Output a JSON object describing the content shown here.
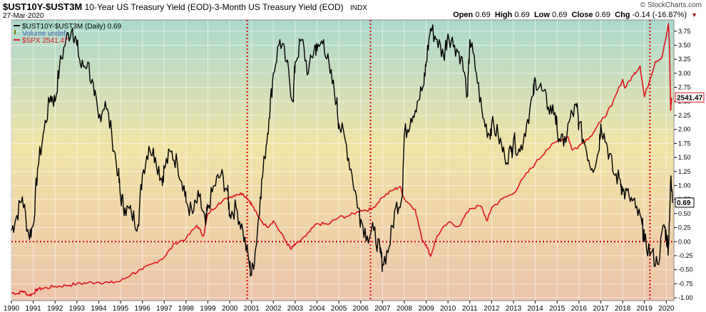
{
  "header": {
    "symbol": "$UST10Y-$UST3M",
    "description": "10-Year US Treasury Yield (EOD)-3-Month US Treasury Yield (EOD)",
    "exchange": "INDX",
    "date": "27-Mar-2020",
    "logo": "© StockCharts.com",
    "quote": {
      "open_label": "Open",
      "open": "0.69",
      "high_label": "High",
      "high": "0.69",
      "low_label": "Low",
      "low": "0.69",
      "close_label": "Close",
      "close": "0.69",
      "chg_label": "Chg",
      "chg": "-0.14 (-16.87%)"
    }
  },
  "legend": {
    "series1": "$UST10Y-$UST3M (Daily) 0.69",
    "volume": "Volume undef",
    "series2": "$SPX 2541.47"
  },
  "colors": {
    "spread": "#000000",
    "spx": "#e0141e",
    "reference_lines": "#d40000",
    "bg_top": "#a9d9cd",
    "bg_mid": "#f1e3a8",
    "bg_bottom": "#edc4a9"
  },
  "chart_data": {
    "type": "line",
    "x_ticks": [
      "1990",
      "1991",
      "1992",
      "1993",
      "1994",
      "1995",
      "1996",
      "1997",
      "1998",
      "1999",
      "2000",
      "2001",
      "2002",
      "2003",
      "2004",
      "2005",
      "2006",
      "2007",
      "2008",
      "2009",
      "2010",
      "2011",
      "2012",
      "2013",
      "2014",
      "2015",
      "2016",
      "2017",
      "2018",
      "2019",
      "2020"
    ],
    "y_ticks": [
      "3.75",
      "3.50",
      "3.25",
      "3.00",
      "2.75",
      "2.50",
      "2.25",
      "2.00",
      "1.75",
      "1.50",
      "1.25",
      "1.00",
      "0.75",
      "0.50",
      "0.25",
      "0.00",
      "-0.25",
      "-0.50",
      "-0.75",
      "-1.00"
    ],
    "ylim": [
      -1.05,
      3.95
    ],
    "xlim": [
      1990.0,
      2020.35
    ],
    "current_value_label": "0.69",
    "spx_value_label": "2541.47",
    "reference_dates": [
      2000.8,
      2006.45,
      2019.25
    ],
    "reference_level": 0.0,
    "series": [
      {
        "name": "$UST10Y-$UST3M (Daily) 0.69",
        "axis": "right",
        "x": [
          1990.0,
          1990.2,
          1990.5,
          1990.8,
          1991.0,
          1991.2,
          1991.5,
          1991.8,
          1992.0,
          1992.2,
          1992.5,
          1992.8,
          1993.0,
          1993.2,
          1993.5,
          1993.8,
          1994.0,
          1994.3,
          1994.6,
          1994.9,
          1995.0,
          1995.2,
          1995.5,
          1995.8,
          1996.0,
          1996.3,
          1996.6,
          1996.9,
          1997.0,
          1997.3,
          1997.6,
          1997.9,
          1998.0,
          1998.3,
          1998.6,
          1998.9,
          1999.0,
          1999.3,
          1999.6,
          1999.9,
          2000.0,
          2000.3,
          2000.6,
          2000.9,
          2001.0,
          2001.2,
          2001.4,
          2001.6,
          2001.8,
          2002.0,
          2002.3,
          2002.6,
          2002.9,
          2003.0,
          2003.3,
          2003.6,
          2003.9,
          2004.0,
          2004.3,
          2004.6,
          2004.9,
          2005.0,
          2005.3,
          2005.6,
          2005.9,
          2006.0,
          2006.3,
          2006.6,
          2006.9,
          2007.0,
          2007.3,
          2007.6,
          2007.9,
          2008.0,
          2008.3,
          2008.6,
          2008.9,
          2009.0,
          2009.2,
          2009.5,
          2009.8,
          2010.0,
          2010.3,
          2010.6,
          2010.9,
          2011.0,
          2011.3,
          2011.6,
          2011.9,
          2012.0,
          2012.3,
          2012.6,
          2012.9,
          2013.0,
          2013.3,
          2013.6,
          2013.9,
          2014.0,
          2014.3,
          2014.6,
          2014.9,
          2015.0,
          2015.3,
          2015.6,
          2015.9,
          2016.0,
          2016.3,
          2016.6,
          2016.9,
          2017.0,
          2017.3,
          2017.6,
          2017.9,
          2018.0,
          2018.3,
          2018.6,
          2018.9,
          2019.0,
          2019.3,
          2019.6,
          2019.9,
          2020.0,
          2020.1,
          2020.2,
          2020.3
        ],
        "values": [
          0.2,
          0.4,
          0.8,
          0.1,
          0.3,
          1.3,
          2.0,
          2.6,
          2.5,
          3.1,
          3.6,
          3.8,
          3.5,
          3.1,
          3.2,
          2.6,
          2.2,
          2.5,
          1.9,
          1.2,
          0.8,
          0.6,
          0.5,
          0.3,
          1.2,
          1.7,
          1.5,
          1.1,
          1.3,
          1.6,
          1.4,
          1.0,
          0.7,
          0.5,
          0.8,
          0.3,
          0.6,
          1.0,
          1.2,
          0.9,
          0.5,
          0.6,
          0.2,
          -0.4,
          -0.6,
          -0.1,
          0.8,
          1.5,
          2.2,
          3.0,
          3.6,
          3.2,
          2.5,
          3.2,
          3.6,
          3.0,
          3.5,
          3.4,
          3.6,
          3.0,
          2.5,
          2.1,
          1.8,
          1.2,
          0.6,
          0.4,
          0.1,
          0.2,
          -0.2,
          -0.4,
          -0.1,
          0.6,
          0.8,
          1.9,
          2.2,
          2.5,
          2.8,
          3.2,
          3.8,
          3.6,
          3.3,
          3.7,
          3.5,
          3.3,
          2.6,
          3.6,
          3.0,
          2.2,
          1.9,
          2.1,
          1.9,
          1.5,
          1.6,
          1.8,
          1.6,
          2.1,
          2.6,
          2.9,
          2.7,
          2.4,
          2.3,
          2.0,
          1.7,
          2.2,
          2.4,
          2.1,
          1.7,
          1.3,
          1.6,
          2.1,
          1.7,
          1.2,
          1.1,
          0.9,
          0.8,
          0.6,
          0.3,
          0.0,
          -0.2,
          -0.4,
          0.3,
          0.1,
          -0.1,
          1.1,
          0.69
        ]
      },
      {
        "name": "$SPX 2541.47",
        "axis": "left",
        "x": [
          1990.0,
          1990.3,
          1990.5,
          1990.8,
          1991.0,
          1991.2,
          1991.5,
          1992.0,
          1992.5,
          1993.0,
          1993.5,
          1994.0,
          1994.5,
          1995.0,
          1995.5,
          1996.0,
          1996.5,
          1997.0,
          1997.5,
          1998.0,
          1998.5,
          1998.8,
          1999.0,
          1999.5,
          2000.0,
          2000.3,
          2000.6,
          2000.9,
          2001.0,
          2001.3,
          2001.7,
          2002.0,
          2002.5,
          2002.8,
          2003.0,
          2003.5,
          2004.0,
          2004.5,
          2005.0,
          2005.5,
          2006.0,
          2006.5,
          2007.0,
          2007.5,
          2007.8,
          2008.0,
          2008.5,
          2008.8,
          2009.0,
          2009.2,
          2009.5,
          2010.0,
          2010.5,
          2011.0,
          2011.5,
          2011.8,
          2012.0,
          2012.5,
          2013.0,
          2013.5,
          2014.0,
          2014.5,
          2015.0,
          2015.5,
          2015.7,
          2016.0,
          2016.5,
          2017.0,
          2017.5,
          2018.0,
          2018.1,
          2018.5,
          2018.8,
          2019.0,
          2019.5,
          2019.8,
          2020.0,
          2020.1,
          2020.15,
          2020.2,
          2020.25
        ],
        "values": [
          340,
          330,
          360,
          310,
          330,
          380,
          390,
          410,
          420,
          440,
          450,
          460,
          450,
          470,
          550,
          600,
          670,
          740,
          900,
          950,
          1100,
          980,
          1230,
          1350,
          1420,
          1450,
          1460,
          1380,
          1340,
          1200,
          1080,
          1150,
          950,
          830,
          880,
          980,
          1120,
          1110,
          1190,
          1210,
          1270,
          1280,
          1420,
          1500,
          1540,
          1400,
          1280,
          950,
          880,
          750,
          980,
          1130,
          1090,
          1290,
          1320,
          1150,
          1300,
          1400,
          1460,
          1650,
          1800,
          1950,
          2050,
          2100,
          1950,
          2000,
          2100,
          2270,
          2450,
          2750,
          2650,
          2800,
          2900,
          2550,
          2950,
          3000,
          3230,
          3380,
          3100,
          2400,
          2541
        ]
      }
    ]
  }
}
